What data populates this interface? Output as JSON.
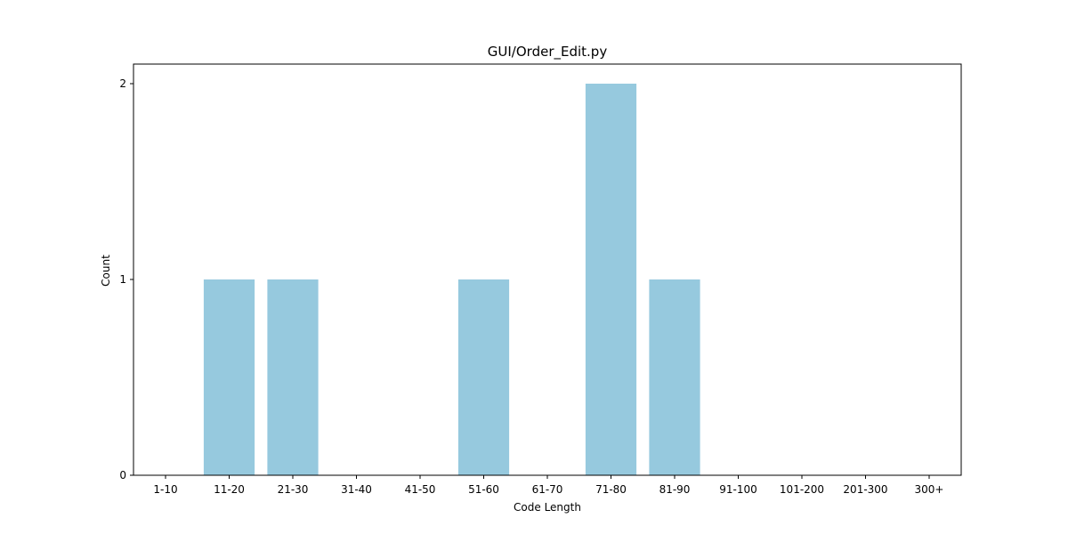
{
  "chart_data": {
    "type": "bar",
    "title": "GUI/Order_Edit.py",
    "xlabel": "Code Length",
    "ylabel": "Count",
    "categories": [
      "1-10",
      "11-20",
      "21-30",
      "31-40",
      "41-50",
      "51-60",
      "61-70",
      "71-80",
      "81-90",
      "91-100",
      "101-200",
      "201-300",
      "300+"
    ],
    "values": [
      0,
      1,
      1,
      0,
      0,
      1,
      0,
      2,
      1,
      0,
      0,
      0,
      0
    ],
    "yticks": [
      0,
      1,
      2
    ],
    "ylim": [
      0,
      2.1
    ],
    "grid": false,
    "bar_color": "#96c9de"
  }
}
